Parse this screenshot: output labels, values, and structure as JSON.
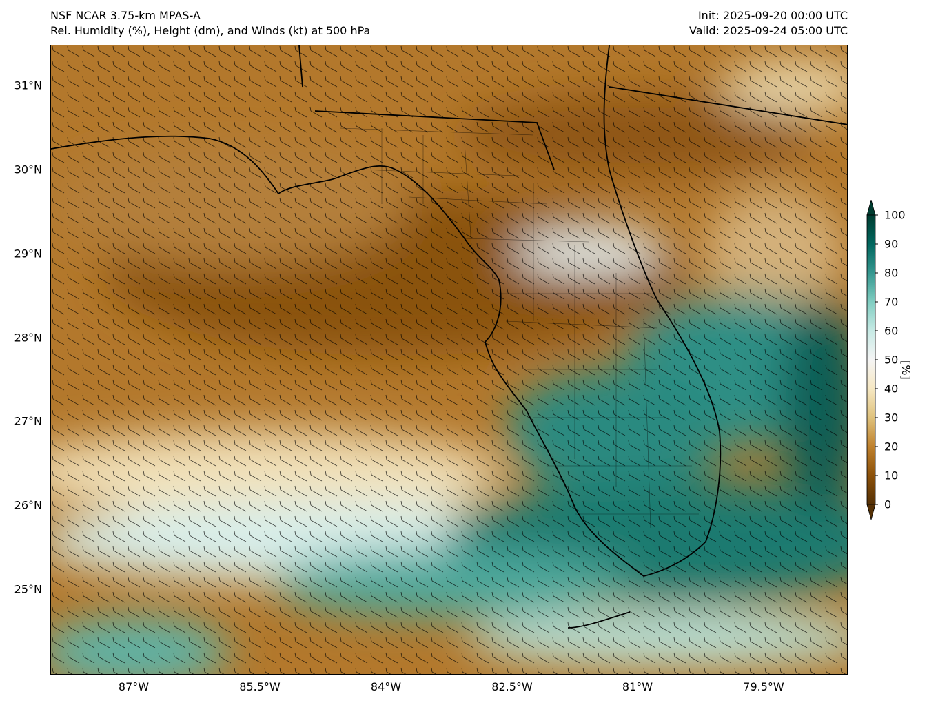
{
  "header": {
    "model": "NSF NCAR 3.75-km MPAS-A",
    "field": "Rel. Humidity (%), Height (dm), and Winds (kt) at 500 hPa",
    "init": "Init: 2025-09-20 00:00 UTC",
    "valid": "Valid: 2025-09-24 05:00 UTC"
  },
  "map": {
    "lat_labels": [
      "31°N",
      "30°N",
      "29°N",
      "28°N",
      "27°N",
      "26°N",
      "25°N"
    ],
    "lon_labels": [
      "87°W",
      "85.5°W",
      "84°W",
      "82.5°W",
      "81°W",
      "79.5°W"
    ],
    "lat_range": [
      24.0,
      31.5
    ],
    "lon_range": [
      -88.0,
      -78.5
    ]
  },
  "colorbar": {
    "title": "[%]",
    "ticks": [
      "0",
      "10",
      "20",
      "30",
      "40",
      "50",
      "60",
      "70",
      "80",
      "90",
      "100"
    ],
    "colors": [
      "#543005",
      "#8c510a",
      "#bf812d",
      "#dfc27d",
      "#f6e8c3",
      "#f5f5f5",
      "#c7eae5",
      "#80cdc1",
      "#35978f",
      "#01665e",
      "#003c30"
    ]
  }
}
